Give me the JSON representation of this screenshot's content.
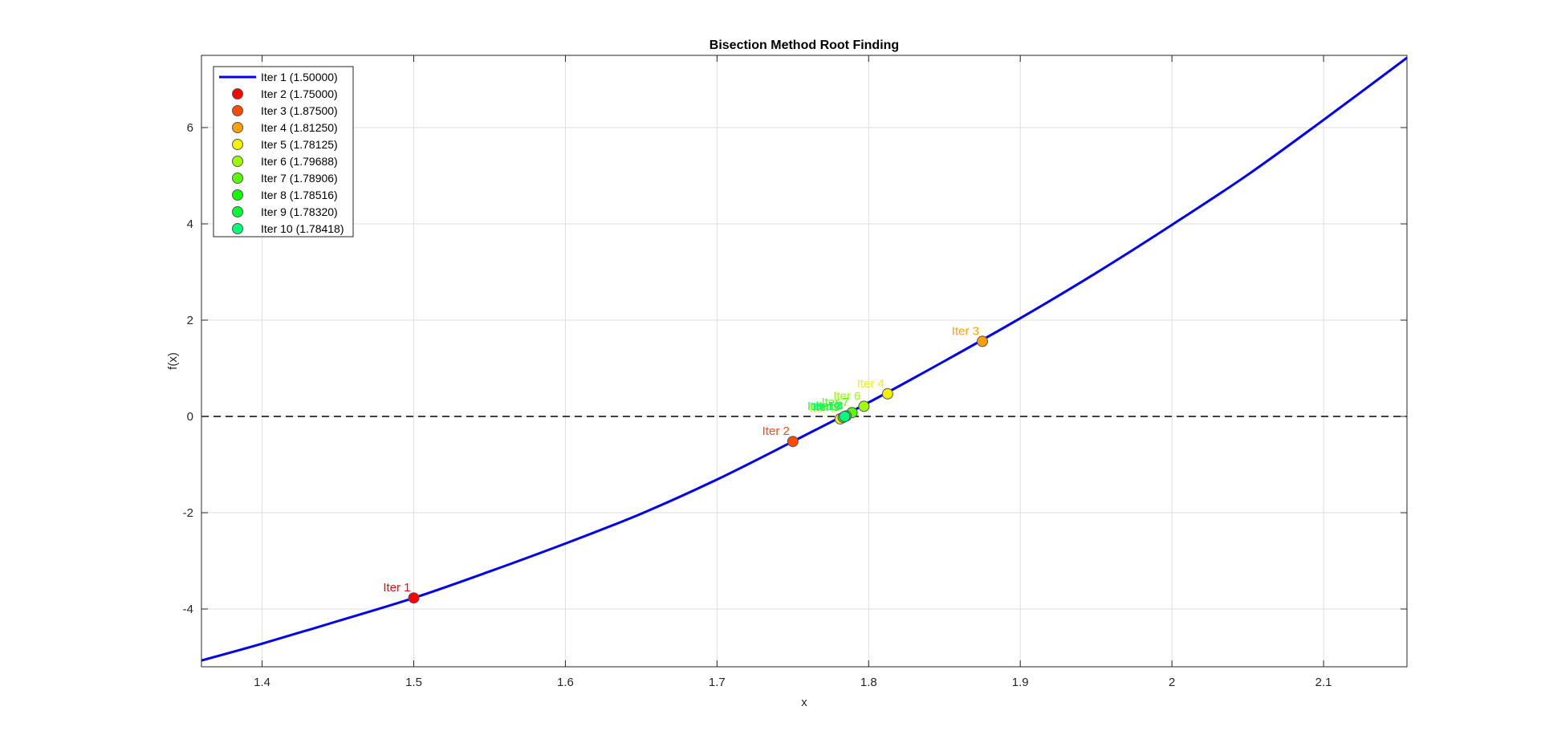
{
  "chart_data": {
    "type": "line",
    "title": "Bisection Method Root Finding",
    "xlabel": "x",
    "ylabel": "f(x)",
    "xlim": [
      1.36,
      2.155
    ],
    "ylim": [
      -5.2,
      7.5
    ],
    "xticks": [
      1.4,
      1.5,
      1.6,
      1.7,
      1.8,
      1.9,
      2,
      2.1
    ],
    "xtick_labels": [
      "1.4",
      "1.5",
      "1.6",
      "1.7",
      "1.8",
      "1.9",
      "2",
      "2.1"
    ],
    "yticks": [
      -4,
      -2,
      0,
      2,
      4,
      6
    ],
    "ytick_labels": [
      "-4",
      "-2",
      "0",
      "2",
      "4",
      "6"
    ],
    "grid": true,
    "legend_position": "top-left",
    "reference_line": {
      "y": 0,
      "style": "dashed",
      "color": "#000000"
    },
    "curve": {
      "color": "#0000ff",
      "x": [
        1.36,
        1.4,
        1.45,
        1.5,
        1.55,
        1.6,
        1.65,
        1.7,
        1.75,
        1.8,
        1.85,
        1.9,
        1.95,
        2.0,
        2.05,
        2.1,
        2.155
      ],
      "y": [
        -5.07,
        -4.72,
        -4.25,
        -3.77,
        -3.22,
        -2.64,
        -2.02,
        -1.31,
        -0.52,
        0.29,
        1.15,
        2.04,
        2.98,
        3.98,
        5.02,
        6.16,
        7.45
      ]
    },
    "points": [
      {
        "label": "Iter 1",
        "x": 1.5,
        "y": -3.77,
        "color": "#ff0000"
      },
      {
        "label": "Iter 2",
        "x": 1.75,
        "y": -0.52,
        "color": "#ff4a00"
      },
      {
        "label": "Iter 3",
        "x": 1.875,
        "y": 1.56,
        "color": "#ff9f00"
      },
      {
        "label": "Iter 4",
        "x": 1.8125,
        "y": 0.47,
        "color": "#f2f200"
      },
      {
        "label": "Iter 5",
        "x": 1.78125,
        "y": -0.05,
        "color": "#f2f200"
      },
      {
        "label": "Iter 6",
        "x": 1.79688,
        "y": 0.21,
        "color": "#9dff00"
      },
      {
        "label": "Iter 7",
        "x": 1.78906,
        "y": 0.08,
        "color": "#57ff00"
      },
      {
        "label": "Iter 8",
        "x": 1.78516,
        "y": 0.01,
        "color": "#11ff00"
      },
      {
        "label": "Iter 9",
        "x": 1.7832,
        "y": -0.02,
        "color": "#00ff35"
      },
      {
        "label": "Iter 10",
        "x": 1.78418,
        "y": 0.0,
        "color": "#00ff7a"
      }
    ],
    "legend": [
      {
        "text": "Iter 1 (1.50000)",
        "kind": "line",
        "color": "#0000ff"
      },
      {
        "text": "Iter 2 (1.75000)",
        "kind": "marker",
        "color": "#ff0000"
      },
      {
        "text": "Iter 3 (1.87500)",
        "kind": "marker",
        "color": "#ff4a00"
      },
      {
        "text": "Iter 4 (1.81250)",
        "kind": "marker",
        "color": "#ff9f00"
      },
      {
        "text": "Iter 5 (1.78125)",
        "kind": "marker",
        "color": "#f2f200"
      },
      {
        "text": "Iter 6 (1.79688)",
        "kind": "marker",
        "color": "#9dff00"
      },
      {
        "text": "Iter 7 (1.78906)",
        "kind": "marker",
        "color": "#57ff00"
      },
      {
        "text": "Iter 8 (1.78516)",
        "kind": "marker",
        "color": "#11ff00"
      },
      {
        "text": "Iter 9 (1.78320)",
        "kind": "marker",
        "color": "#00ff35"
      },
      {
        "text": "Iter 10 (1.78418)",
        "kind": "marker",
        "color": "#00ff7a"
      }
    ]
  }
}
